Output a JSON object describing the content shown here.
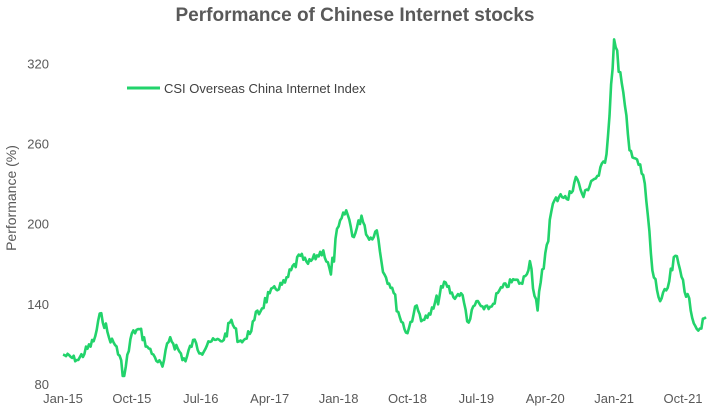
{
  "chart_data": {
    "type": "line",
    "title": "Performance of Chinese Internet stocks",
    "xlabel": "",
    "ylabel": "Performance (%)",
    "ylim": [
      80,
      345
    ],
    "yticks": [
      80,
      140,
      200,
      260,
      320
    ],
    "x_tick_labels": [
      "Jan-15",
      "Oct-15",
      "Jul-16",
      "Apr-17",
      "Jan-18",
      "Oct-18",
      "Jul-19",
      "Apr-20",
      "Jan-21",
      "Oct-21"
    ],
    "legend_position": "top-left",
    "grid": false,
    "line_color": "#22d36b",
    "series": [
      {
        "name": "CSI Overseas China Internet Index",
        "x": [
          "2015-01",
          "2015-03",
          "2015-05",
          "2015-06",
          "2015-07",
          "2015-08",
          "2015-09",
          "2015-10",
          "2015-11",
          "2015-12",
          "2016-01",
          "2016-02",
          "2016-03",
          "2016-05",
          "2016-06",
          "2016-07",
          "2016-08",
          "2016-10",
          "2016-11",
          "2016-12",
          "2017-01",
          "2017-02",
          "2017-04",
          "2017-06",
          "2017-08",
          "2017-09",
          "2017-11",
          "2017-12",
          "2018-01",
          "2018-02",
          "2018-03",
          "2018-04",
          "2018-05",
          "2018-06",
          "2018-07",
          "2018-08",
          "2018-09",
          "2018-10",
          "2018-11",
          "2018-12",
          "2019-01",
          "2019-03",
          "2019-04",
          "2019-05",
          "2019-06",
          "2019-07",
          "2019-08",
          "2019-09",
          "2019-10",
          "2019-12",
          "2020-01",
          "2020-02",
          "2020-03",
          "2020-04",
          "2020-05",
          "2020-06",
          "2020-07",
          "2020-08",
          "2020-09",
          "2020-10",
          "2020-11",
          "2020-12",
          "2021-01",
          "2021-02",
          "2021-03",
          "2021-04",
          "2021-05",
          "2021-06",
          "2021-07",
          "2021-08",
          "2021-09",
          "2021-10",
          "2021-11",
          "2021-12",
          "2022-01"
        ],
        "values": [
          102,
          98,
          112,
          133,
          115,
          108,
          86,
          118,
          121,
          108,
          100,
          93,
          115,
          97,
          113,
          103,
          112,
          113,
          128,
          112,
          114,
          128,
          148,
          156,
          176,
          170,
          180,
          162,
          198,
          210,
          190,
          206,
          188,
          195,
          162,
          152,
          130,
          118,
          138,
          128,
          132,
          156,
          145,
          148,
          126,
          142,
          136,
          138,
          150,
          158,
          155,
          172,
          135,
          178,
          215,
          222,
          218,
          235,
          220,
          232,
          236,
          252,
          338,
          305,
          255,
          248,
          230,
          165,
          142,
          152,
          176,
          158,
          135,
          120,
          130
        ]
      }
    ]
  }
}
